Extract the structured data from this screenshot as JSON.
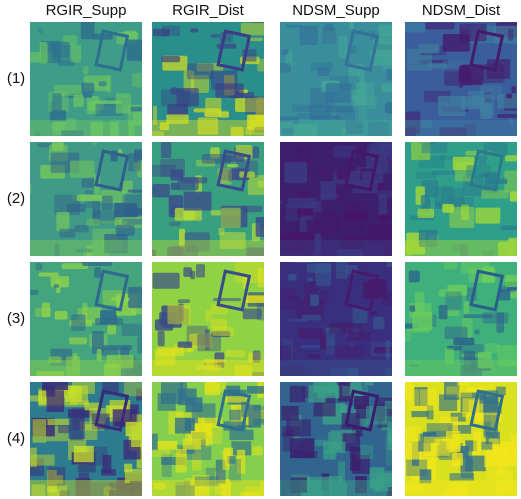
{
  "columns": [
    "RGIR_Supp",
    "RGIR_Dist",
    "NDSM_Supp",
    "NDSM_Dist"
  ],
  "rows": [
    "(1)",
    "(2)",
    "(3)",
    "(4)"
  ]
}
